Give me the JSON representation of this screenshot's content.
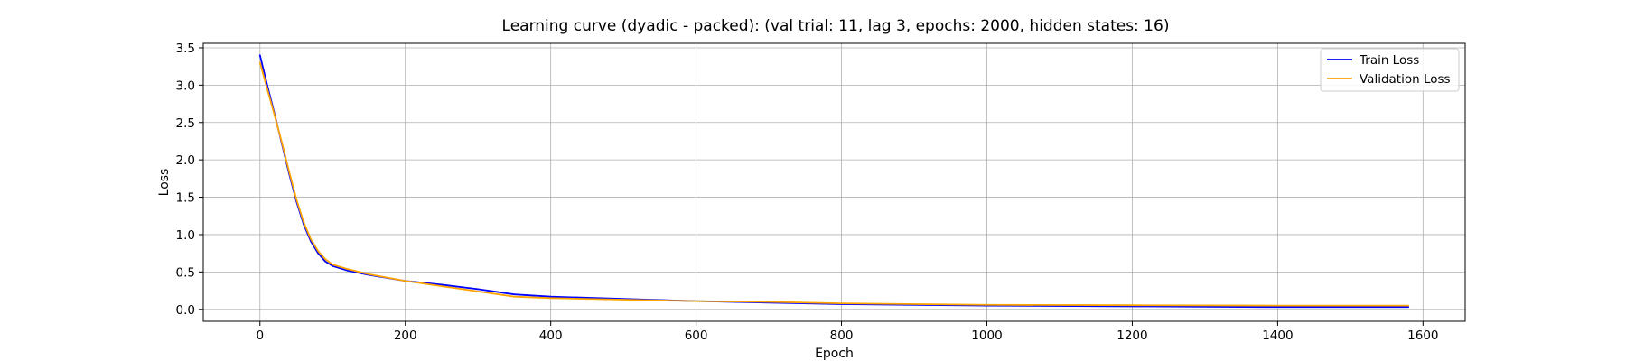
{
  "chart_data": {
    "type": "line",
    "title": "Learning curve (dyadic - packed): (val trial: 11, lag 3, epochs: 2000, hidden states: 16)",
    "xlabel": "Epoch",
    "ylabel": "Loss",
    "xlim": [
      -78,
      1658
    ],
    "ylim": [
      -0.16,
      3.56
    ],
    "xticks": [
      0,
      200,
      400,
      600,
      800,
      1000,
      1200,
      1400,
      1600
    ],
    "yticks": [
      0.0,
      0.5,
      1.0,
      1.5,
      2.0,
      2.5,
      3.0,
      3.5
    ],
    "grid": true,
    "legend_position": "top-right",
    "series": [
      {
        "name": "Train Loss",
        "color": "#0000ff",
        "x": [
          0,
          10,
          20,
          30,
          40,
          50,
          60,
          70,
          80,
          90,
          100,
          120,
          150,
          200,
          250,
          300,
          350,
          400,
          500,
          600,
          700,
          800,
          1000,
          1200,
          1400,
          1580
        ],
        "y": [
          3.4,
          3.0,
          2.62,
          2.22,
          1.82,
          1.45,
          1.14,
          0.91,
          0.75,
          0.64,
          0.58,
          0.52,
          0.46,
          0.38,
          0.33,
          0.27,
          0.2,
          0.17,
          0.14,
          0.11,
          0.09,
          0.07,
          0.05,
          0.04,
          0.03,
          0.03
        ]
      },
      {
        "name": "Validation Loss",
        "color": "#ffa500",
        "x": [
          0,
          10,
          20,
          30,
          40,
          50,
          60,
          70,
          80,
          90,
          100,
          120,
          150,
          200,
          250,
          300,
          350,
          400,
          500,
          600,
          700,
          800,
          1000,
          1200,
          1400,
          1580
        ],
        "y": [
          3.3,
          2.95,
          2.6,
          2.24,
          1.85,
          1.48,
          1.17,
          0.94,
          0.78,
          0.67,
          0.6,
          0.54,
          0.47,
          0.38,
          0.31,
          0.24,
          0.17,
          0.15,
          0.13,
          0.11,
          0.1,
          0.08,
          0.06,
          0.055,
          0.05,
          0.05
        ]
      }
    ]
  }
}
